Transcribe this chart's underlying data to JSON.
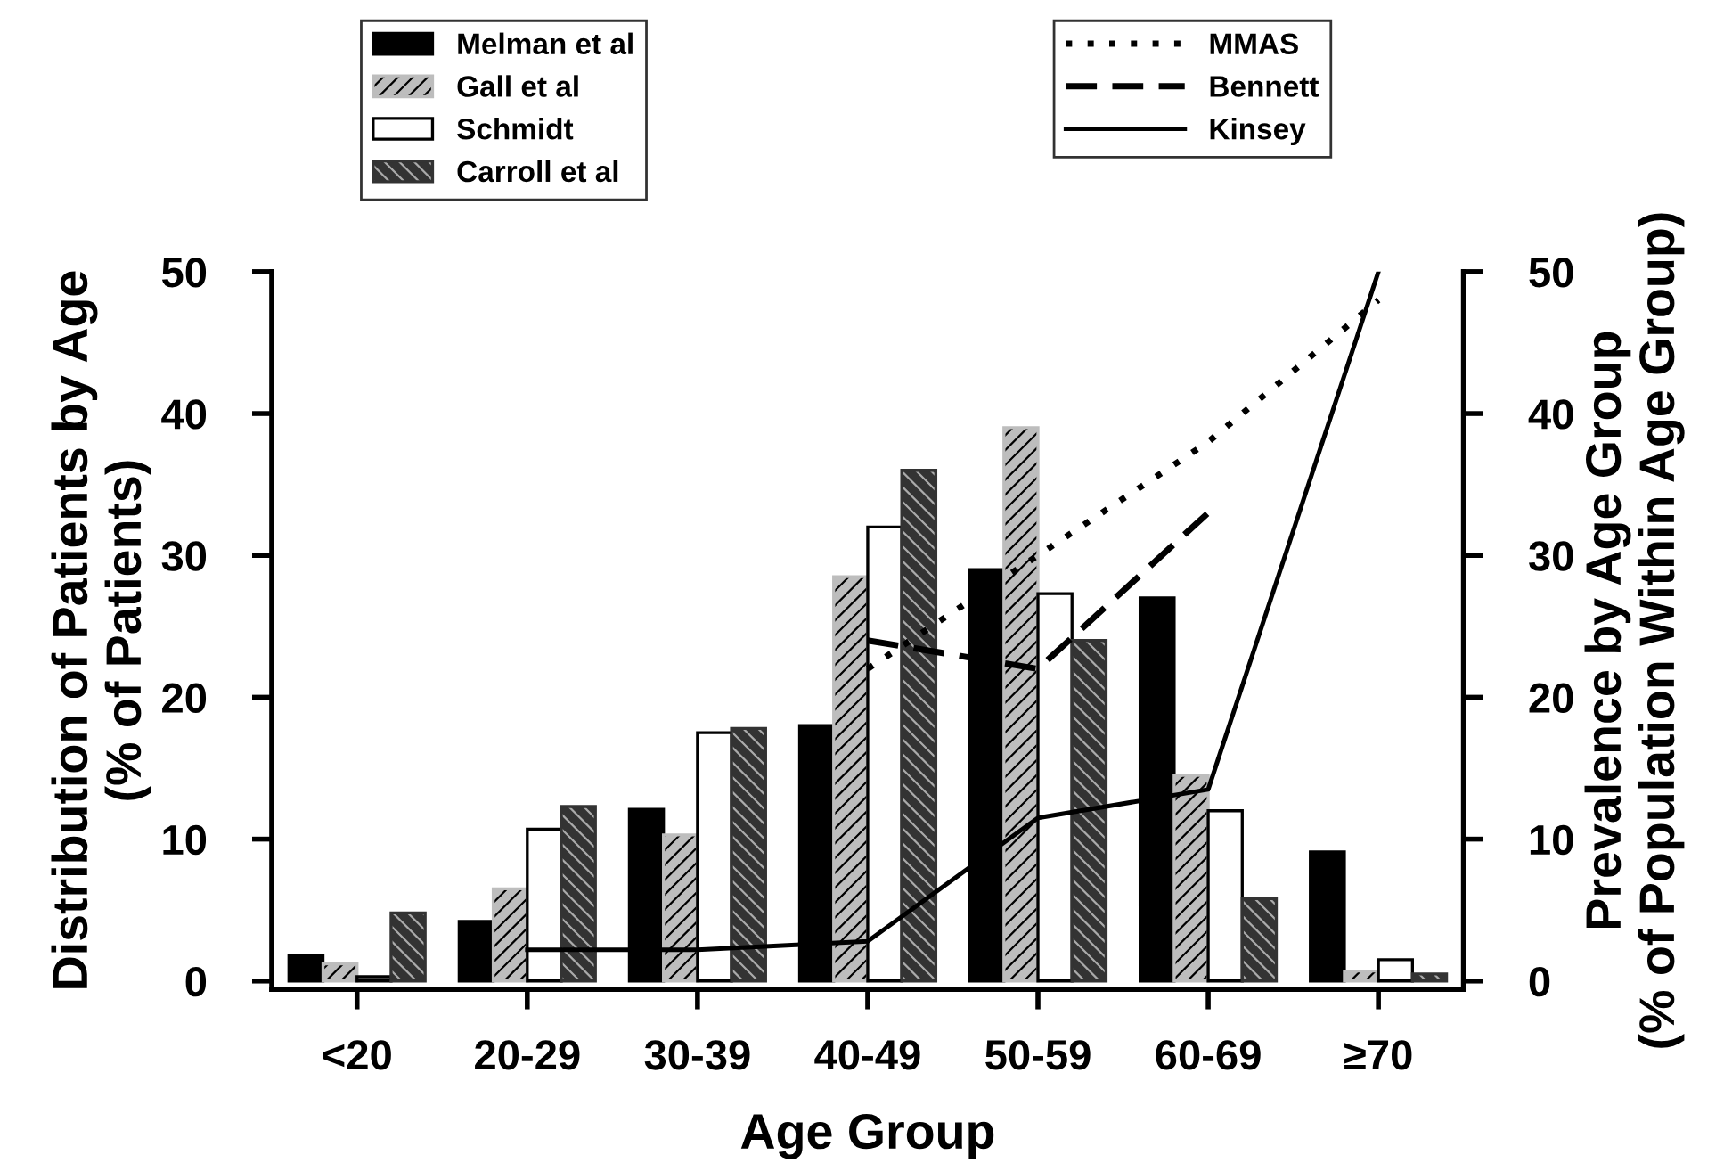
{
  "chart_data": {
    "type": "bar",
    "xlabel": "Age Group",
    "ylabel": "Distribution of Patients by Age\n(% of Patients)",
    "y2label": "Prevalence by Age Group\n(% of Population Within Age Group)",
    "categories": [
      "<20",
      "20-29",
      "30-39",
      "40-49",
      "50-59",
      "60-69",
      "≥70"
    ],
    "ylim": [
      -0.6,
      50
    ],
    "yticks": [
      0,
      10,
      20,
      30,
      40,
      50
    ],
    "y2lim": [
      -0.6,
      50
    ],
    "y2ticks": [
      0,
      10,
      20,
      30,
      40,
      50
    ],
    "grid": false,
    "legend": "top",
    "series": [
      {
        "name": "Melman et al",
        "color": "#000000",
        "values": [
          1.8,
          4.2,
          12.1,
          18,
          29,
          27,
          9.1
        ]
      },
      {
        "name": "Gall et al",
        "color": "#bdbdbd",
        "values": [
          1.2,
          6.5,
          10.3,
          28.5,
          39,
          14.5,
          0.7
        ]
      },
      {
        "name": "Schmidt",
        "color": "#ffffff",
        "values": [
          0.3,
          10.7,
          17.5,
          32,
          27.3,
          12,
          1.5
        ]
      },
      {
        "name": "Carroll et al",
        "color": "#333333",
        "values": [
          4.8,
          12.3,
          17.8,
          36,
          24,
          5.8,
          0.5
        ]
      },
      {
        "name": "MMAS",
        "type": "line",
        "axis": "y2",
        "line_style": "dotted",
        "color": "#000000",
        "values": [
          null,
          null,
          null,
          22,
          30,
          38,
          48
        ]
      },
      {
        "name": "Bennett",
        "type": "line",
        "axis": "y2",
        "line_style": "dashed",
        "color": "#000000",
        "values": [
          null,
          null,
          null,
          24,
          22,
          33,
          null
        ]
      },
      {
        "name": "Kinsey",
        "type": "line",
        "axis": "y2",
        "line_style": "solid",
        "color": "#000000",
        "values": [
          null,
          2.2,
          2.2,
          2.8,
          11.5,
          13.5,
          50
        ]
      }
    ]
  }
}
